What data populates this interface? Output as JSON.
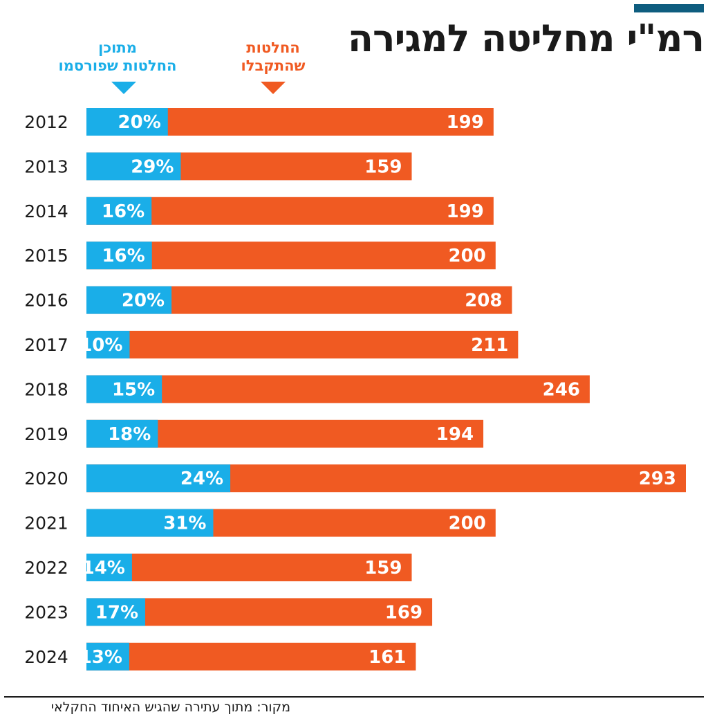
{
  "title": "רמ\"י מחליטה למגירה",
  "legend": {
    "published": {
      "line1": "מתוכן",
      "line2": "החלטות שפורסמו",
      "color": "#1aaee8"
    },
    "accepted": {
      "line1": "החלטות",
      "line2": "שהתקבלו",
      "color": "#f05a22"
    }
  },
  "source": "מקור: מתוך עתירה שהגיש האיחוד החקלאי",
  "chart_data": {
    "type": "bar",
    "orientation": "horizontal",
    "categories": [
      "2012",
      "2013",
      "2014",
      "2015",
      "2016",
      "2017",
      "2018",
      "2019",
      "2020",
      "2021",
      "2022",
      "2023",
      "2024"
    ],
    "series": [
      {
        "name": "החלטות שהתקבלו",
        "values": [
          199,
          159,
          199,
          200,
          208,
          211,
          246,
          194,
          293,
          200,
          159,
          169,
          161
        ],
        "labels": [
          "199",
          "159",
          "199",
          "200",
          "208",
          "211",
          "246",
          "194",
          "293",
          "200",
          "159",
          "169",
          "161"
        ],
        "color": "#f05a22"
      },
      {
        "name": "מתוכן החלטות שפורסמו",
        "values": [
          20,
          29,
          16,
          16,
          20,
          10,
          15,
          18,
          24,
          31,
          14,
          17,
          13
        ],
        "labels": [
          "20%",
          "29%",
          "16%",
          "16%",
          "20%",
          "10%",
          "15%",
          "18%",
          "24%",
          "31%",
          "14%",
          "17%",
          "13%"
        ],
        "unit": "%",
        "color": "#1aaee8"
      }
    ],
    "xlim": [
      0,
      293
    ]
  }
}
